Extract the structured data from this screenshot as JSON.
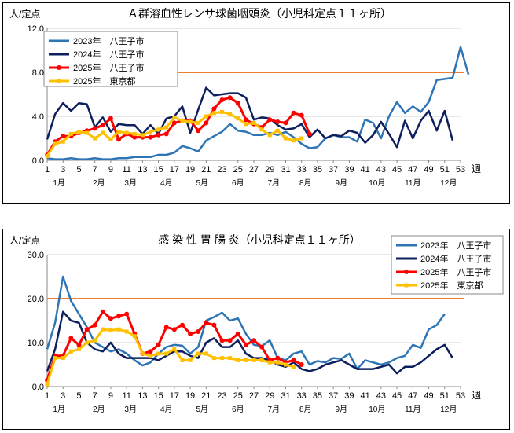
{
  "chart_data": [
    {
      "type": "line",
      "title": "Ａ群溶血性レンサ球菌咽頭炎（小児科定点１１ヶ所）",
      "ylabel": "人/定点",
      "xlabel": "週",
      "ylim": [
        0,
        12
      ],
      "yticks": [
        "0.0",
        "4.0",
        "8.0",
        "12.0"
      ],
      "xticks": [
        "1",
        "3",
        "5",
        "7",
        "9",
        "11",
        "13",
        "15",
        "17",
        "19",
        "21",
        "23",
        "25",
        "27",
        "29",
        "31",
        "33",
        "35",
        "37",
        "39",
        "41",
        "43",
        "45",
        "47",
        "49",
        "51",
        "53"
      ],
      "months": [
        "1月",
        "2月",
        "3月",
        "4月",
        "5月",
        "6月",
        "7月",
        "8月",
        "9月",
        "10月",
        "11月",
        "12月"
      ],
      "month_weeks": [
        2.5,
        7.5,
        11.5,
        16,
        20.5,
        25,
        29.5,
        33.5,
        38,
        42.5,
        47,
        51.5
      ],
      "threshold": 8.0,
      "legend_position": "top-left",
      "series": [
        {
          "name": "2023年　八王子市",
          "color": "#2E75B6",
          "markers": false,
          "values": [
            0.2,
            0.1,
            0.1,
            0.2,
            0.1,
            0.1,
            0.2,
            0.1,
            0.1,
            0.2,
            0.2,
            0.3,
            0.3,
            0.3,
            0.5,
            0.5,
            0.7,
            1.3,
            1.1,
            0.8,
            1.8,
            2.2,
            2.6,
            3.3,
            2.7,
            2.6,
            2.3,
            2.3,
            2.5,
            2.3,
            2.6,
            2.1,
            1.5,
            1.1,
            1.2,
            2.0,
            2.3,
            2.1,
            2.1,
            1.7,
            3.7,
            3.4,
            2.0,
            4.0,
            5.3,
            4.3,
            4.9,
            4.4,
            5.3,
            7.3,
            7.4,
            7.5,
            10.3,
            7.8
          ]
        },
        {
          "name": "2024年　八王子市",
          "color": "#0D1F5C",
          "markers": false,
          "values": [
            1.9,
            4.2,
            5.2,
            4.5,
            5.2,
            5.1,
            3.0,
            3.9,
            2.6,
            3.3,
            3.2,
            3.2,
            2.4,
            3.2,
            2.4,
            3.8,
            4.0,
            4.9,
            2.5,
            4.6,
            6.6,
            5.9,
            6.0,
            6.1,
            6.1,
            5.7,
            3.7,
            3.9,
            3.8,
            3.2,
            2.8,
            2.9,
            3.3,
            2.1,
            2.8,
            2.0,
            2.3,
            2.2,
            2.7,
            2.5,
            1.6,
            2.3,
            3.5,
            2.4,
            1.2,
            3.6,
            2.0,
            3.6,
            4.5,
            2.7,
            4.5,
            1.8
          ]
        },
        {
          "name": "2025年　八王子市",
          "color": "#FF0000",
          "markers": true,
          "values": [
            0.5,
            1.7,
            2.2,
            2.2,
            2.5,
            2.7,
            2.9,
            3.2,
            3.8,
            1.9,
            2.4,
            2.1,
            2.1,
            2.1,
            2.3,
            2.4,
            3.4,
            3.6,
            3.6,
            2.7,
            3.4,
            4.7,
            5.5,
            5.7,
            5.2,
            3.7,
            3.3,
            3.0,
            3.7,
            3.5,
            3.4,
            4.3,
            4.1,
            2.4
          ]
        },
        {
          "name": "2025年　東京都",
          "color": "#FFC000",
          "markers": true,
          "values": [
            0.4,
            1.5,
            1.7,
            2.4,
            2.6,
            2.5,
            2.0,
            2.5,
            1.9,
            2.6,
            2.5,
            2.4,
            2.3,
            2.6,
            2.8,
            3.0,
            3.9,
            3.6,
            3.5,
            3.4,
            4.0,
            4.3,
            4.4,
            4.2,
            3.8,
            3.3,
            3.4,
            2.8,
            2.3,
            2.7,
            2.0,
            1.8,
            2.0
          ]
        }
      ]
    },
    {
      "type": "line",
      "title": "感 染 性 胃 腸 炎（小児科定点１１ヶ所）",
      "ylabel": "人/定点",
      "xlabel": "週",
      "ylim": [
        0,
        30
      ],
      "yticks": [
        "0.0",
        "10.0",
        "20.0",
        "30.0"
      ],
      "xticks": [
        "1",
        "3",
        "5",
        "7",
        "9",
        "11",
        "13",
        "15",
        "17",
        "19",
        "21",
        "23",
        "25",
        "27",
        "29",
        "31",
        "33",
        "35",
        "37",
        "39",
        "41",
        "43",
        "45",
        "47",
        "49",
        "51",
        "53"
      ],
      "months": [
        "1月",
        "2月",
        "3月",
        "4月",
        "5月",
        "6月",
        "7月",
        "8月",
        "9月",
        "10月",
        "11月",
        "12月"
      ],
      "month_weeks": [
        2.5,
        7.5,
        11.5,
        16,
        20.5,
        25,
        29.5,
        33.5,
        38,
        42.5,
        47,
        51.5
      ],
      "threshold": 20.0,
      "legend_position": "top-right",
      "series": [
        {
          "name": "2023年　八王子市",
          "color": "#2E75B6",
          "markers": false,
          "values": [
            8.5,
            14.5,
            25.0,
            19.5,
            16.5,
            13.5,
            10.0,
            9.0,
            8.0,
            8.5,
            7.5,
            6.0,
            4.8,
            5.5,
            7.5,
            9.0,
            9.5,
            9.3,
            7.5,
            9.0,
            15.0,
            15.8,
            16.8,
            15.0,
            15.5,
            12.0,
            9.5,
            9.2,
            10.5,
            6.5,
            6.0,
            7.5,
            8.0,
            5.0,
            5.8,
            5.5,
            6.5,
            6.3,
            7.5,
            4.0,
            6.0,
            5.5,
            5.0,
            5.5,
            6.5,
            7.0,
            9.5,
            8.8,
            13.0,
            14.0,
            16.5
          ]
        },
        {
          "name": "2024年　八王子市",
          "color": "#0D1F5C",
          "markers": false,
          "values": [
            3.5,
            8.5,
            17.0,
            15.0,
            14.5,
            10.0,
            8.5,
            8.0,
            10.0,
            7.5,
            6.5,
            6.5,
            6.5,
            6.5,
            6.0,
            7.0,
            8.0,
            8.0,
            7.0,
            6.5,
            10.0,
            11.0,
            9.0,
            9.0,
            10.5,
            7.5,
            6.5,
            6.5,
            6.0,
            5.0,
            4.5,
            5.5,
            4.0,
            3.5,
            4.0,
            5.0,
            5.5,
            6.0,
            5.0,
            4.0,
            4.0,
            4.0,
            4.5,
            5.0,
            3.0,
            4.5,
            4.5,
            5.5,
            7.0,
            8.5,
            9.5,
            6.5
          ]
        },
        {
          "name": "2025年　八王子市",
          "color": "#FF0000",
          "markers": true,
          "values": [
            1.5,
            7.0,
            7.0,
            11.0,
            9.5,
            13.0,
            14.0,
            17.0,
            15.5,
            16.0,
            16.5,
            12.0,
            7.5,
            8.0,
            9.5,
            13.5,
            13.0,
            14.0,
            12.0,
            12.5,
            14.5,
            14.0,
            10.5,
            10.5,
            12.0,
            9.5,
            10.5,
            9.0,
            6.0,
            6.5,
            5.5,
            6.0,
            5.0
          ]
        },
        {
          "name": "2025年　東京都",
          "color": "#FFC000",
          "markers": true,
          "values": [
            0.5,
            6.5,
            6.5,
            8.0,
            8.5,
            10.0,
            10.5,
            13.0,
            12.8,
            13.0,
            12.5,
            11.5,
            7.5,
            7.0,
            7.5,
            7.5,
            8.5,
            6.0,
            6.0,
            7.5,
            7.5,
            6.5,
            6.5,
            6.5,
            6.0,
            6.0,
            6.0,
            6.0,
            5.5,
            5.5,
            5.0,
            4.5
          ]
        }
      ]
    }
  ]
}
